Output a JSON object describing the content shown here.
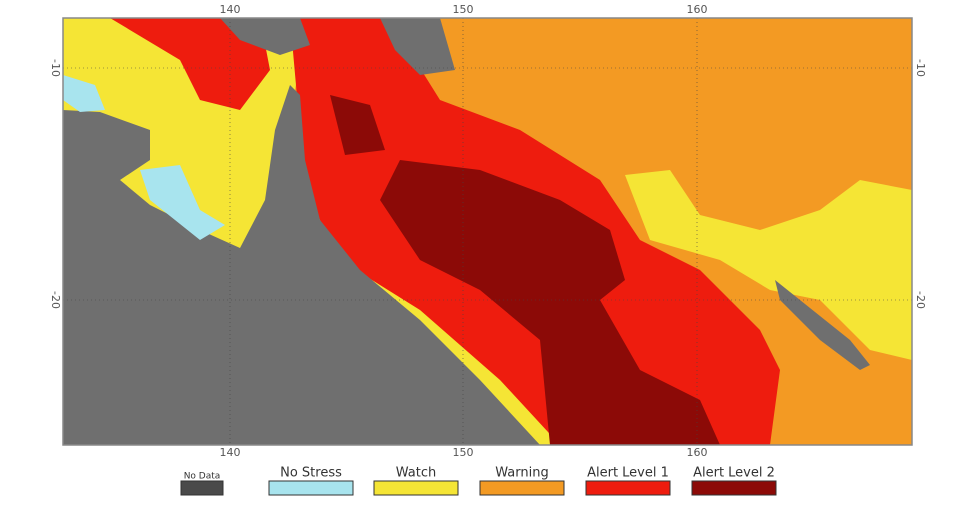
{
  "map": {
    "lon_labels": [
      "140",
      "150",
      "160"
    ],
    "lat_labels": [
      "-10",
      "-20"
    ],
    "legend": [
      {
        "label": "No Data",
        "color": "#4a4a4a"
      },
      {
        "label": "No Stress",
        "color": "#a8e4ee"
      },
      {
        "label": "Watch",
        "color": "#f5e535"
      },
      {
        "label": "Warning",
        "color": "#f39a23"
      },
      {
        "label": "Alert Level 1",
        "color": "#ee1c0e"
      },
      {
        "label": "Alert Level 2",
        "color": "#8c0a07"
      }
    ]
  }
}
